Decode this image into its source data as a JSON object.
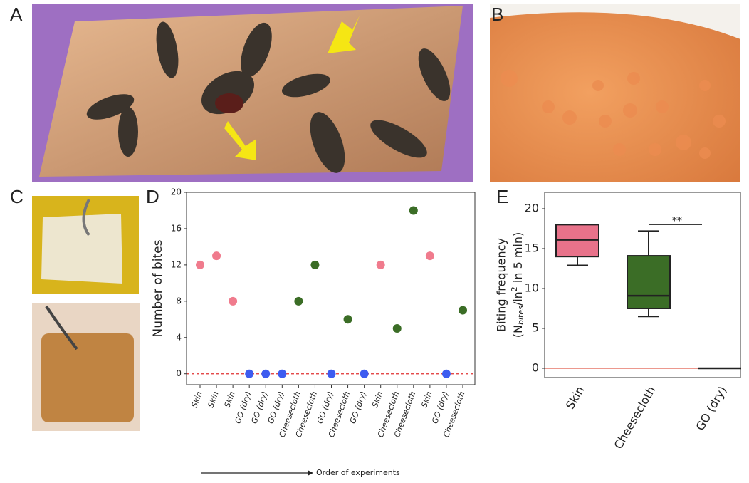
{
  "panels": [
    "A",
    "B",
    "C",
    "D",
    "E"
  ],
  "chart_data": [
    {
      "type": "scatter",
      "categories": [
        "Skin",
        "Skin",
        "Skin",
        "GO (dry)",
        "GO (dry)",
        "GO (dry)",
        "Cheesecloth",
        "Cheesecloth",
        "GO (dry)",
        "Cheesecloth",
        "GO (dry)",
        "Skin",
        "Cheesecloth",
        "Cheesecloth",
        "Skin",
        "GO (dry)",
        "Cheesecloth"
      ],
      "values": [
        12,
        13,
        8,
        0,
        0,
        0,
        8,
        12,
        0,
        6,
        0,
        12,
        5,
        18,
        13,
        0,
        7
      ],
      "colors": [
        "#f07b8d",
        "#f07b8d",
        "#f07b8d",
        "#3d5cf0",
        "#3d5cf0",
        "#3d5cf0",
        "#3b6d26",
        "#3b6d26",
        "#3d5cf0",
        "#3b6d26",
        "#3d5cf0",
        "#f07b8d",
        "#3b6d26",
        "#3b6d26",
        "#f07b8d",
        "#3d5cf0",
        "#3b6d26"
      ],
      "ylabel": "Number of bites",
      "xlabel": "Order of experiments",
      "ylim": [
        -1.2,
        20
      ],
      "yticks": [
        0,
        4,
        8,
        12,
        16,
        20
      ],
      "hline": 0,
      "hline_color": "#e03030"
    },
    {
      "type": "box",
      "categories": [
        "Skin",
        "Cheesecloth",
        "GO (dry)"
      ],
      "min": [
        12.9,
        6.5,
        0
      ],
      "q1": [
        14,
        7.5,
        0
      ],
      "median": [
        16.1,
        9.1,
        0
      ],
      "q3": [
        18,
        14.1,
        0
      ],
      "max": [
        18,
        17.2,
        0
      ],
      "colors": [
        "#e8728a",
        "#3b6d26",
        "#555555"
      ],
      "ylabel_parts": [
        "Biting frequency",
        "(N",
        "bites",
        "/in",
        "2",
        " in 5 min)"
      ],
      "ylim": [
        -1.16,
        22.05
      ],
      "yticks": [
        0,
        5,
        10,
        15,
        20
      ],
      "hline": 0,
      "hline_color": "#e05a4a",
      "annotation": "**",
      "annotation_y": 18
    }
  ]
}
